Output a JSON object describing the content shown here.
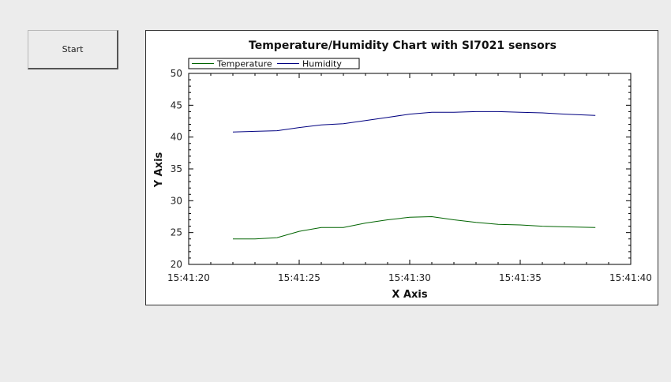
{
  "controls": {
    "start_label": "Start"
  },
  "chart_data": {
    "type": "line",
    "title": "Temperature/Humidity Chart with SI7021 sensors",
    "xlabel": "X Axis",
    "ylabel": "Y Axis",
    "xlim": [
      "15:41:20",
      "15:41:40"
    ],
    "ylim": [
      20,
      50
    ],
    "x_ticks": [
      "15:41:20",
      "15:41:25",
      "15:41:30",
      "15:41:35",
      "15:41:40"
    ],
    "y_ticks": [
      20,
      25,
      30,
      35,
      40,
      45,
      50
    ],
    "legend_position": "top-left",
    "series": [
      {
        "name": "Temperature",
        "color": "#006400",
        "x": [
          "15:41:22",
          "15:41:23",
          "15:41:24",
          "15:41:25",
          "15:41:26",
          "15:41:27",
          "15:41:28",
          "15:41:29",
          "15:41:30",
          "15:41:31",
          "15:41:32",
          "15:41:33",
          "15:41:34",
          "15:41:35",
          "15:41:36",
          "15:41:37",
          "15:41:38.4"
        ],
        "y": [
          24.0,
          24.0,
          24.2,
          25.2,
          25.8,
          25.8,
          26.5,
          27.0,
          27.4,
          27.5,
          27.0,
          26.6,
          26.3,
          26.2,
          26.0,
          25.9,
          25.8
        ]
      },
      {
        "name": "Humidity",
        "color": "#000080",
        "x": [
          "15:41:22",
          "15:41:23",
          "15:41:24",
          "15:41:25",
          "15:41:26",
          "15:41:27",
          "15:41:28",
          "15:41:29",
          "15:41:30",
          "15:41:31",
          "15:41:32",
          "15:41:33",
          "15:41:34",
          "15:41:35",
          "15:41:36",
          "15:41:37",
          "15:41:38.4"
        ],
        "y": [
          40.8,
          40.9,
          41.0,
          41.5,
          41.9,
          42.1,
          42.6,
          43.1,
          43.6,
          43.9,
          43.9,
          44.0,
          44.0,
          43.9,
          43.8,
          43.6,
          43.4
        ]
      }
    ]
  }
}
